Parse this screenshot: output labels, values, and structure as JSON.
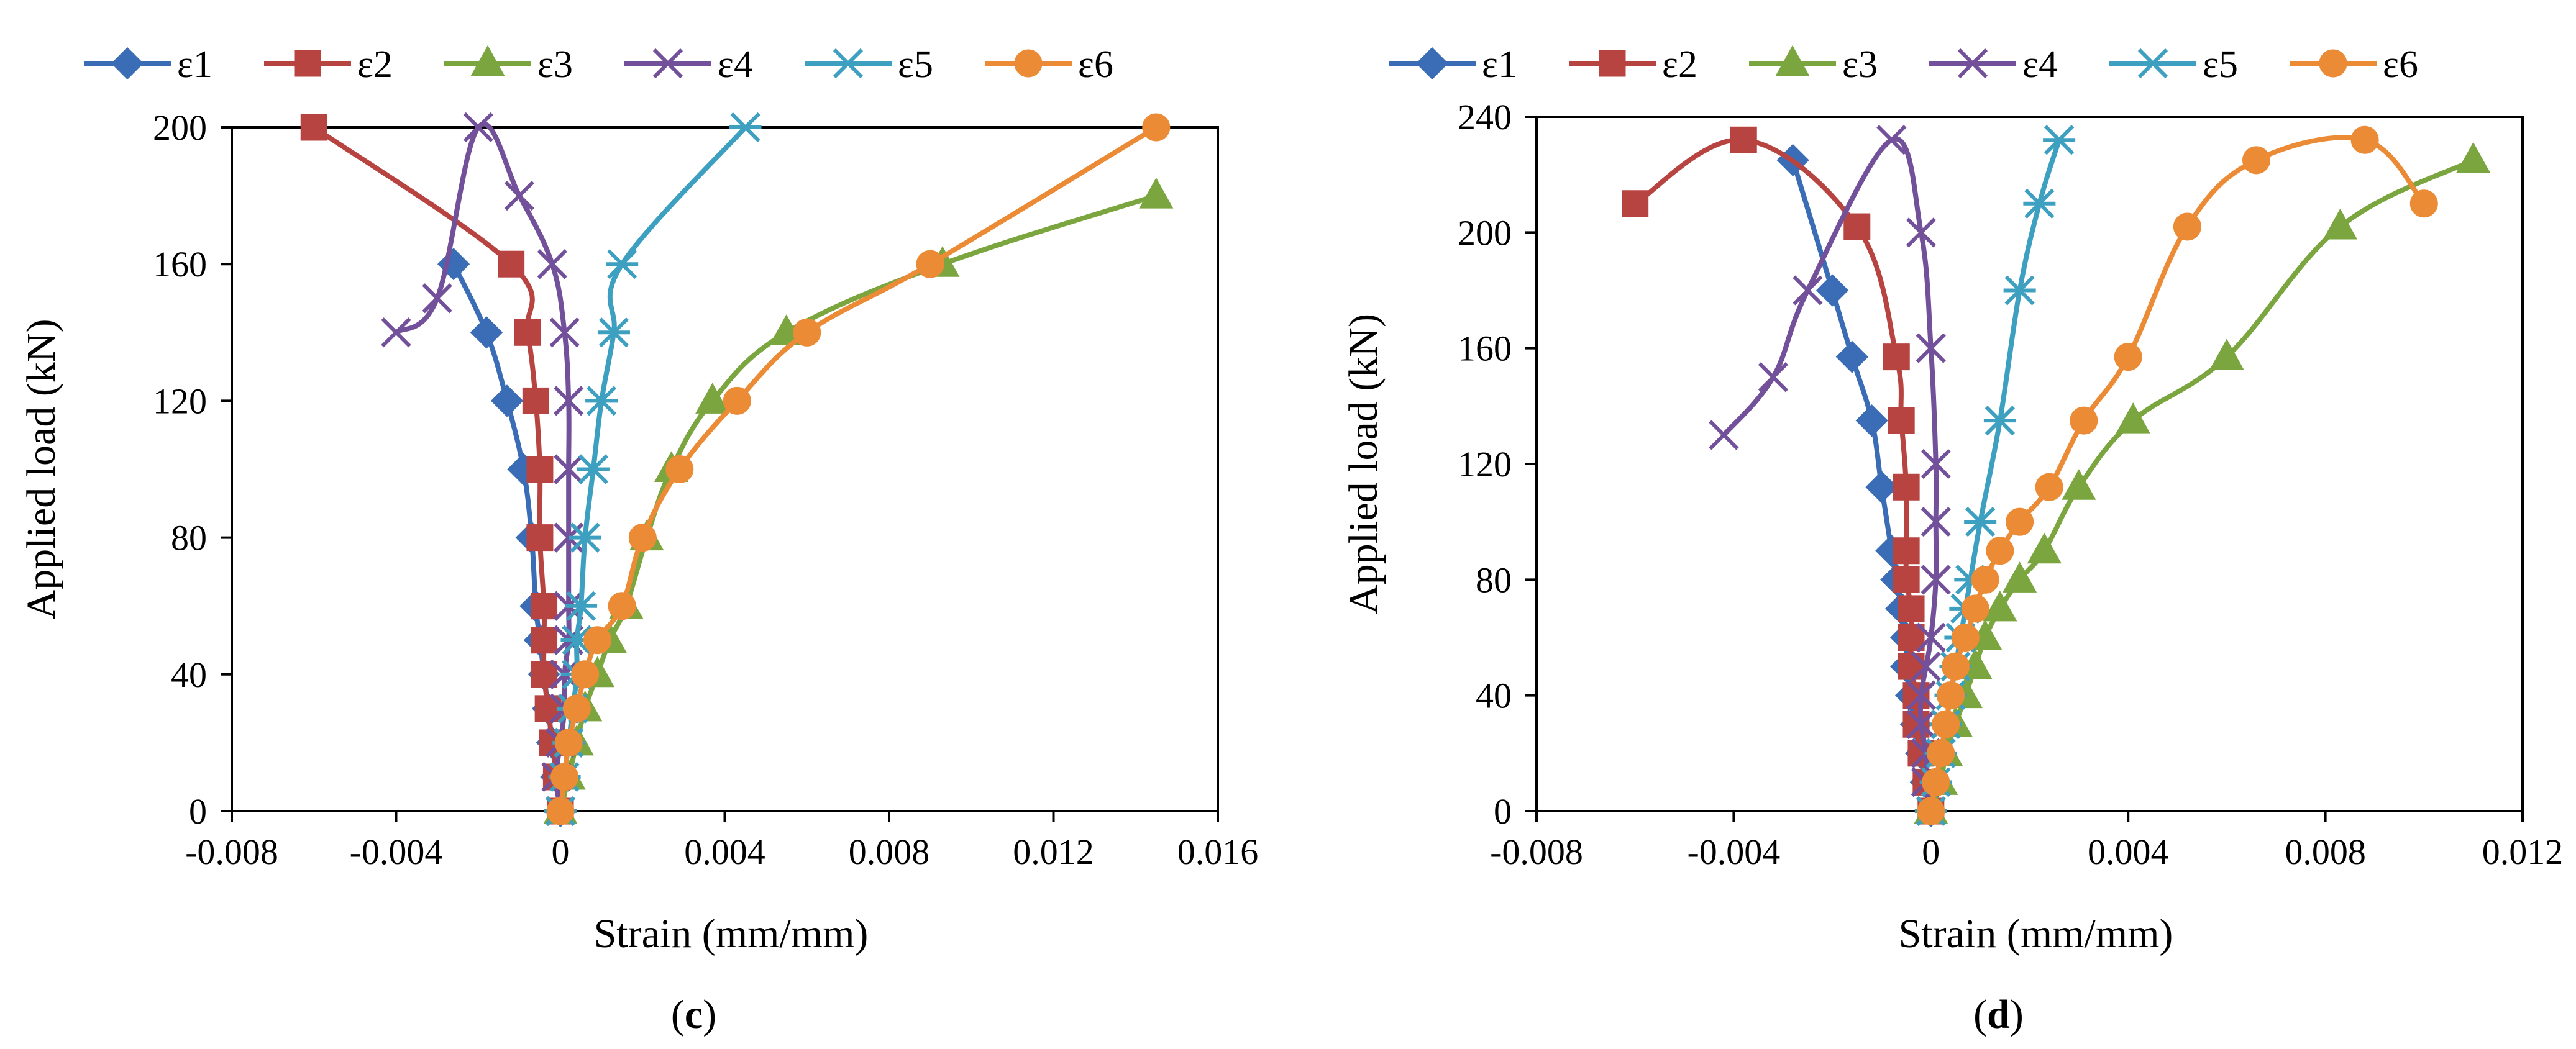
{
  "chart_data": [
    {
      "type": "line",
      "panel_label": "(c)",
      "xlabel": "Strain (mm/mm)",
      "ylabel": "Applied load (kN)",
      "xlim": [
        -0.008,
        0.016
      ],
      "ylim": [
        0,
        200
      ],
      "xticks": [
        -0.008,
        -0.004,
        0,
        0.004,
        0.008,
        0.012,
        0.016
      ],
      "xtick_labels": [
        "-0.008",
        "-0.004",
        "0",
        "0.004",
        "0.008",
        "0.012",
        "0.016"
      ],
      "yticks": [
        0,
        40,
        80,
        120,
        160,
        200
      ],
      "ytick_labels": [
        "0",
        "40",
        "80",
        "120",
        "160",
        "200"
      ],
      "grid": false,
      "legend_position": "top",
      "series": [
        {
          "name": "ε1",
          "color": "#3a6db5",
          "marker": "diamond",
          "x": [
            0,
            -0.0001,
            -0.0002,
            -0.0003,
            -0.0004,
            -0.0005,
            -0.0006,
            -0.0007,
            -0.0009,
            -0.0013,
            -0.0018,
            -0.0026
          ],
          "y": [
            0,
            10,
            20,
            30,
            40,
            50,
            60,
            80,
            100,
            120,
            140,
            160
          ]
        },
        {
          "name": "ε2",
          "color": "#b84441",
          "marker": "square",
          "x": [
            0,
            -0.0001,
            -0.0002,
            -0.0003,
            -0.0004,
            -0.0004,
            -0.0004,
            -0.0005,
            -0.0005,
            -0.0006,
            -0.0008,
            -0.0012,
            -0.006
          ],
          "y": [
            0,
            10,
            20,
            30,
            40,
            50,
            60,
            80,
            100,
            120,
            140,
            160,
            200
          ]
        },
        {
          "name": "ε3",
          "color": "#7aa53f",
          "marker": "triangle",
          "x": [
            0,
            0.0002,
            0.0004,
            0.0006,
            0.0009,
            0.0012,
            0.0016,
            0.0021,
            0.0027,
            0.0037,
            0.0055,
            0.0093,
            0.0145
          ],
          "y": [
            0,
            10,
            20,
            30,
            40,
            50,
            60,
            80,
            100,
            120,
            140,
            160,
            180
          ]
        },
        {
          "name": "ε4",
          "color": "#73509a",
          "marker": "x",
          "x": [
            0,
            -0.0001,
            0,
            0.0001,
            0.0001,
            0.0002,
            0.0002,
            0.0002,
            0.0002,
            0.0002,
            0.0001,
            -0.0002,
            -0.001,
            -0.002,
            -0.003,
            -0.004
          ],
          "y": [
            0,
            10,
            20,
            30,
            40,
            50,
            60,
            80,
            100,
            120,
            140,
            160,
            180,
            200,
            150,
            140
          ]
        },
        {
          "name": "ε5",
          "color": "#3ea0c1",
          "marker": "asterisk",
          "x": [
            0,
            0.0001,
            0.0002,
            0.0003,
            0.0004,
            0.0004,
            0.0005,
            0.0006,
            0.0008,
            0.001,
            0.0013,
            0.0015,
            0.0045
          ],
          "y": [
            0,
            10,
            20,
            30,
            40,
            50,
            60,
            80,
            100,
            120,
            140,
            160,
            200
          ]
        },
        {
          "name": "ε6",
          "color": "#ec8b36",
          "marker": "circle",
          "x": [
            0,
            0.0001,
            0.0002,
            0.0004,
            0.0006,
            0.0009,
            0.0015,
            0.002,
            0.0029,
            0.0043,
            0.006,
            0.009,
            0.0145
          ],
          "y": [
            0,
            10,
            20,
            30,
            40,
            50,
            60,
            80,
            100,
            120,
            140,
            160,
            200
          ]
        }
      ]
    },
    {
      "type": "line",
      "panel_label": "(d)",
      "xlabel": "Strain (mm/mm)",
      "ylabel": "Applied load (kN)",
      "xlim": [
        -0.008,
        0.012
      ],
      "ylim": [
        0,
        240
      ],
      "xticks": [
        -0.008,
        -0.004,
        0,
        0.004,
        0.008,
        0.012
      ],
      "xtick_labels": [
        "-0.008",
        "-0.004",
        "0",
        "0.004",
        "0.008",
        "0.012"
      ],
      "yticks": [
        0,
        40,
        80,
        120,
        160,
        200,
        240
      ],
      "ytick_labels": [
        "0",
        "40",
        "80",
        "120",
        "160",
        "200",
        "240"
      ],
      "grid": false,
      "legend_position": "top",
      "series": [
        {
          "name": "ε1",
          "color": "#3a6db5",
          "marker": "diamond",
          "x": [
            0,
            -0.0001,
            -0.0002,
            -0.0003,
            -0.0004,
            -0.0005,
            -0.0005,
            -0.0006,
            -0.0007,
            -0.0008,
            -0.001,
            -0.0012,
            -0.0016,
            -0.002,
            -0.0028
          ],
          "y": [
            0,
            10,
            20,
            30,
            40,
            50,
            60,
            70,
            80,
            90,
            112,
            135,
            157,
            180,
            225
          ]
        },
        {
          "name": "ε2",
          "color": "#b84441",
          "marker": "square",
          "x": [
            0,
            -0.0001,
            -0.0002,
            -0.0003,
            -0.0003,
            -0.0004,
            -0.0004,
            -0.0004,
            -0.0005,
            -0.0005,
            -0.0005,
            -0.0006,
            -0.0007,
            -0.0015,
            -0.0038,
            -0.006
          ],
          "y": [
            0,
            10,
            20,
            30,
            40,
            50,
            60,
            70,
            80,
            90,
            112,
            135,
            157,
            202,
            232,
            210
          ]
        },
        {
          "name": "ε3",
          "color": "#7aa53f",
          "marker": "triangle",
          "x": [
            0,
            0.0002,
            0.0003,
            0.0005,
            0.0007,
            0.0009,
            0.0011,
            0.0014,
            0.0018,
            0.0023,
            0.003,
            0.0041,
            0.006,
            0.0083,
            0.011
          ],
          "y": [
            0,
            10,
            20,
            30,
            40,
            50,
            60,
            70,
            80,
            90,
            112,
            135,
            157,
            202,
            225
          ]
        },
        {
          "name": "ε4",
          "color": "#73509a",
          "marker": "x",
          "x": [
            0,
            -0.0001,
            -0.0001,
            -0.0002,
            -0.0002,
            -0.0001,
            0,
            0.0001,
            0.0001,
            0.0001,
            0,
            -0.0002,
            -0.0008,
            -0.0025,
            -0.0032,
            -0.0042
          ],
          "y": [
            0,
            10,
            20,
            30,
            40,
            50,
            60,
            80,
            100,
            120,
            160,
            200,
            232,
            180,
            150,
            130
          ]
        },
        {
          "name": "ε5",
          "color": "#3ea0c1",
          "marker": "asterisk",
          "x": [
            0,
            0.0001,
            0.0002,
            0.0003,
            0.0004,
            0.0005,
            0.0006,
            0.0007,
            0.0008,
            0.001,
            0.0014,
            0.0018,
            0.0022,
            0.0026
          ],
          "y": [
            0,
            10,
            20,
            30,
            40,
            50,
            60,
            70,
            80,
            100,
            135,
            180,
            210,
            232
          ]
        },
        {
          "name": "ε6",
          "color": "#ec8b36",
          "marker": "circle",
          "x": [
            0,
            0.0001,
            0.0002,
            0.0003,
            0.0004,
            0.0005,
            0.0007,
            0.0009,
            0.0011,
            0.0014,
            0.0018,
            0.0024,
            0.0031,
            0.004,
            0.0052,
            0.0066,
            0.0088,
            0.01
          ],
          "y": [
            0,
            10,
            20,
            30,
            40,
            50,
            60,
            70,
            80,
            90,
            100,
            112,
            135,
            157,
            202,
            225,
            232,
            210
          ]
        }
      ]
    }
  ]
}
